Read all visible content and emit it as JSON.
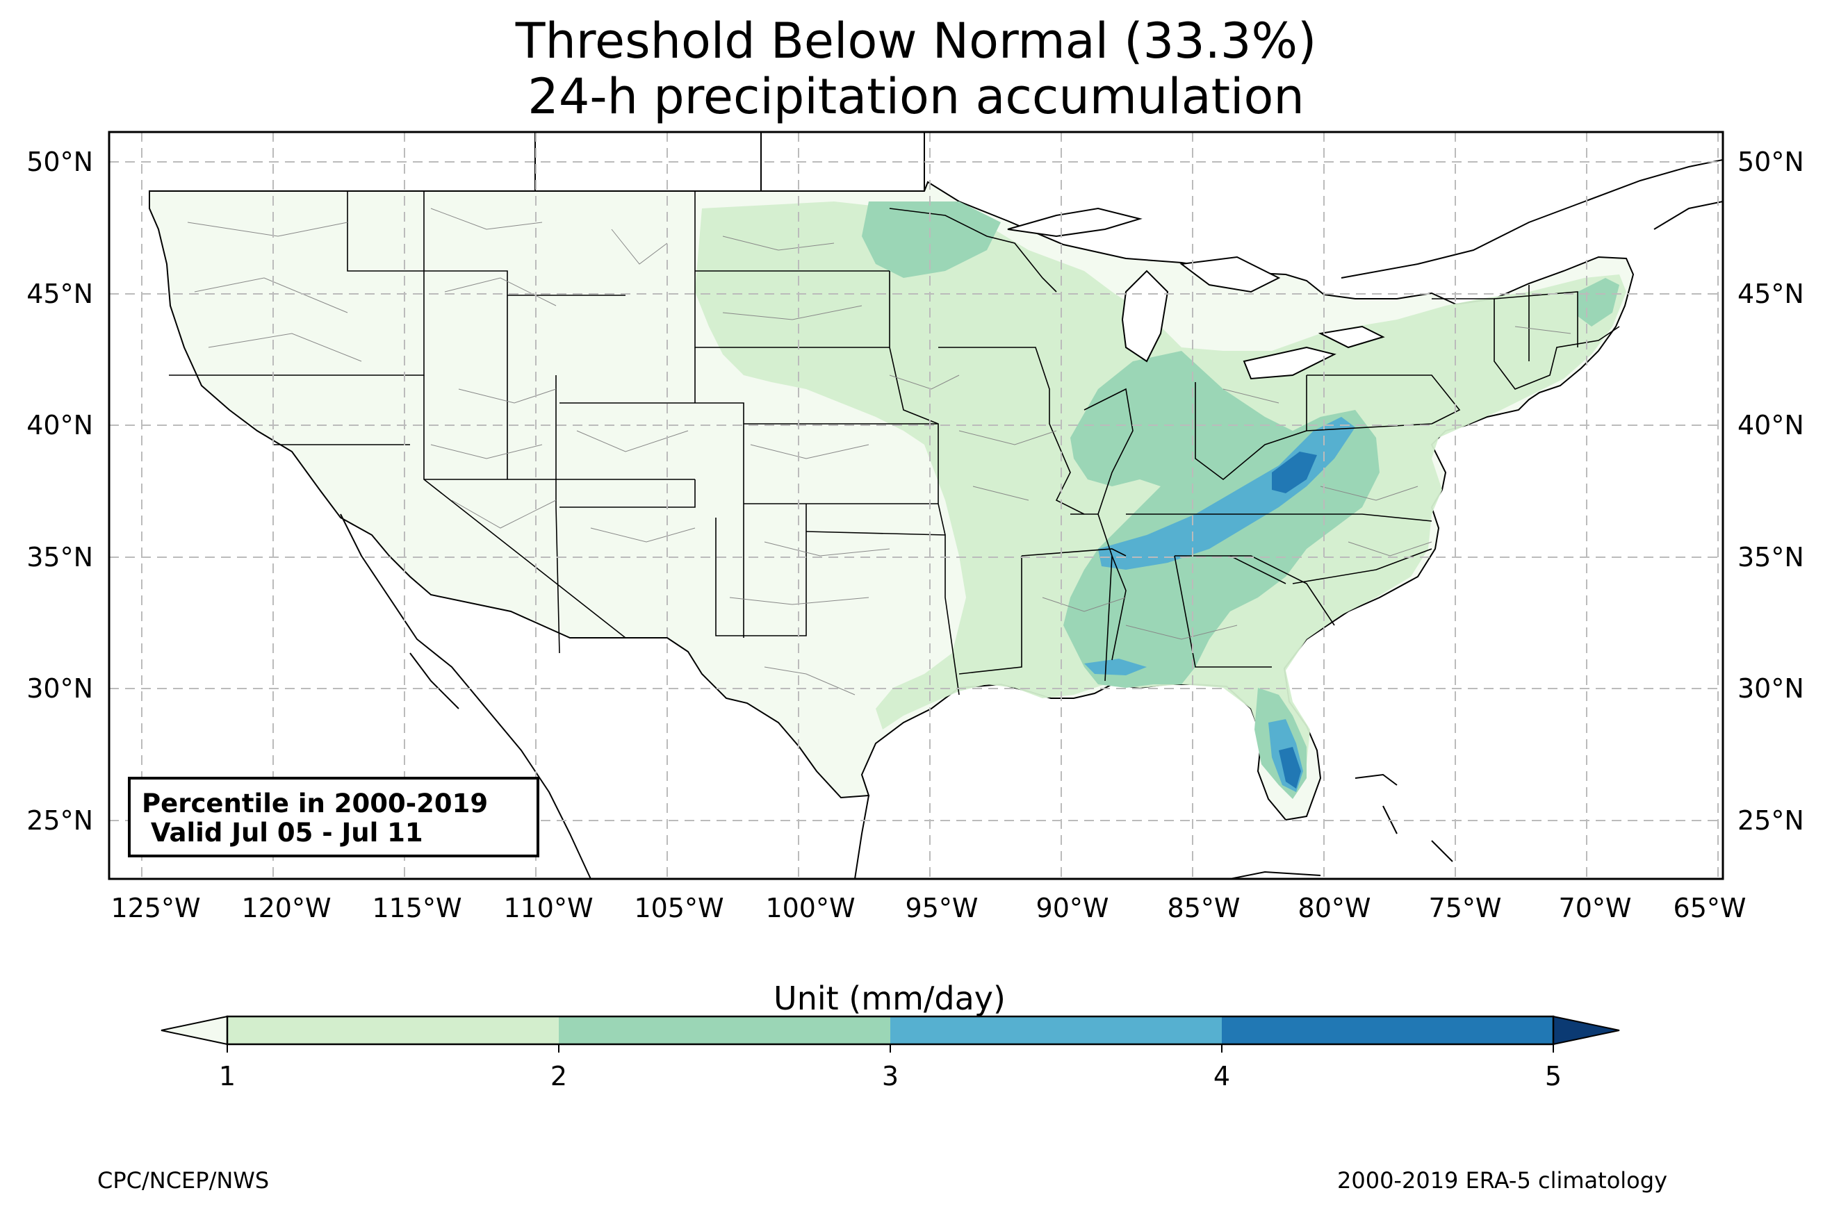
{
  "title": {
    "line1": "Threshold Below Normal (33.3%)",
    "line2": "24-h precipitation accumulation"
  },
  "map": {
    "region": "Contiguous United States",
    "lon_range": [
      -126.3,
      -64.9
    ],
    "lat_range": [
      22.8,
      51.2
    ],
    "lon_ticks": [
      "125°W",
      "120°W",
      "115°W",
      "110°W",
      "105°W",
      "100°W",
      "95°W",
      "90°W",
      "85°W",
      "80°W",
      "75°W",
      "70°W",
      "65°W"
    ],
    "lat_ticks": [
      "50°N",
      "45°N",
      "40°N",
      "35°N",
      "30°N",
      "25°N"
    ],
    "gridlines": true,
    "info_box": {
      "line1": "Percentile in 2000-2019",
      "line2": " Valid Jul 05 - Jul 11",
      "placement": "bottom-left"
    },
    "shading_summary": [
      {
        "area": "Western US",
        "range": "below 1 mm/day"
      },
      {
        "area": "Central Plains / Upper Midwest",
        "range": "1-3 mm/day"
      },
      {
        "area": "Tennessee Valley / Appalachians",
        "range": "3-5 mm/day"
      },
      {
        "area": "Florida peninsula",
        "range": "3-5 mm/day"
      }
    ]
  },
  "colorbar": {
    "unit_label": "Unit (mm/day)",
    "ticks": [
      "1",
      "2",
      "3",
      "4",
      "5"
    ],
    "colors": {
      "below_1": "#f3faf0",
      "1_2": "#d3eecd",
      "2_3": "#9bd6b6",
      "3_4": "#56b0d0",
      "4_5": "#2178b4",
      "above_5": "#0b3a73"
    },
    "extend": "both"
  },
  "footer": {
    "left": "CPC/NCEP/NWS",
    "right": "2000-2019 ERA-5 climatology"
  }
}
